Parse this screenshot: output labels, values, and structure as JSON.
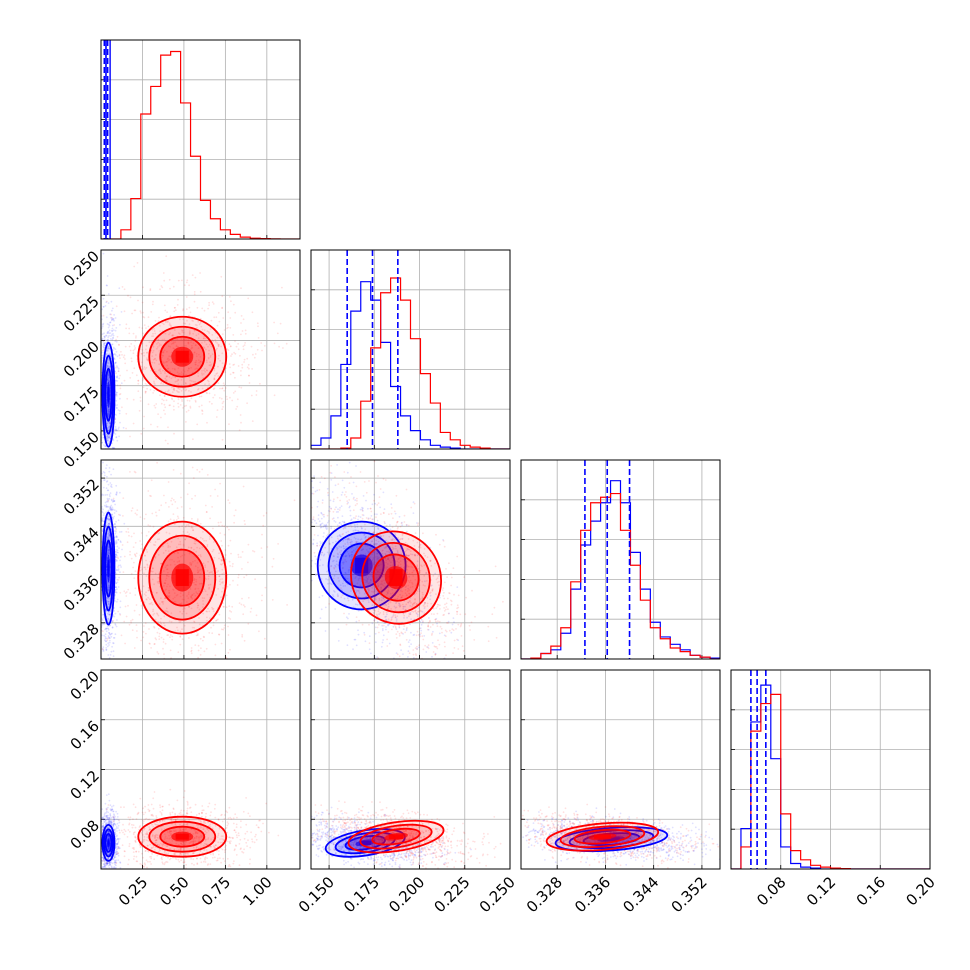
{
  "chart_data": {
    "type": "corner",
    "n_params": 4,
    "xlabels": [
      "",
      "",
      "",
      ""
    ],
    "series": [
      {
        "name": "",
        "color": "#0000ff"
      },
      {
        "name": "",
        "color": "#ff0000"
      }
    ],
    "ranges": [
      [
        0.0,
        1.2
      ],
      [
        0.14,
        0.25
      ],
      [
        0.322,
        0.355
      ],
      [
        0.04,
        0.2
      ]
    ],
    "ticks": {
      "p1": [
        "0.25",
        "0.50",
        "0.75",
        "1.00"
      ],
      "p2": [
        "0.150",
        "0.175",
        "0.200",
        "0.225",
        "0.250"
      ],
      "p3": [
        "0.328",
        "0.336",
        "0.344",
        "0.352"
      ],
      "p4": [
        "0.08",
        "0.12",
        "0.16",
        "0.20"
      ]
    },
    "quantile_lines_blue": [
      [
        0.02,
        0.03,
        0.04
      ],
      [
        0.16,
        0.174,
        0.188
      ],
      [
        0.3326,
        0.3363,
        0.34
      ],
      [
        0.056,
        0.061,
        0.068
      ]
    ],
    "hist1d": {
      "p1": {
        "red": {
          "edges": [
            0.0,
            0.06,
            0.12,
            0.18,
            0.24,
            0.3,
            0.36,
            0.42,
            0.48,
            0.54,
            0.6,
            0.66,
            0.72,
            0.78,
            0.84,
            0.9,
            0.96,
            1.02,
            1.08,
            1.14,
            1.2
          ],
          "counts": [
            0,
            0,
            0.05,
            0.22,
            0.68,
            0.83,
            1.0,
            1.02,
            0.74,
            0.45,
            0.21,
            0.11,
            0.05,
            0.025,
            0.01,
            0.004,
            0.002,
            0.001,
            0,
            0
          ]
        },
        "blue_cutoff": 0.055
      },
      "p2": {
        "edges": [
          0.14,
          0.1455,
          0.151,
          0.1565,
          0.162,
          0.1675,
          0.173,
          0.1785,
          0.184,
          0.1895,
          0.195,
          0.2005,
          0.206,
          0.2115,
          0.217,
          0.2225,
          0.228,
          0.2335,
          0.239,
          0.2445,
          0.25
        ],
        "blue": [
          0.02,
          0.06,
          0.18,
          0.46,
          0.75,
          0.91,
          0.81,
          0.58,
          0.34,
          0.18,
          0.1,
          0.05,
          0.02,
          0.01,
          0.005,
          0,
          0,
          0,
          0,
          0
        ],
        "red": [
          0,
          0,
          0,
          0.005,
          0.06,
          0.26,
          0.55,
          0.85,
          0.93,
          0.81,
          0.6,
          0.41,
          0.25,
          0.09,
          0.05,
          0.02,
          0.01,
          0.005,
          0,
          0
        ]
      },
      "p3": {
        "edges": [
          0.322,
          0.32365,
          0.3253,
          0.32695,
          0.3286,
          0.33025,
          0.3319,
          0.33355,
          0.3352,
          0.33685,
          0.3385,
          0.34015,
          0.3418,
          0.34345,
          0.3451,
          0.34675,
          0.3484,
          0.35005,
          0.3517,
          0.35335,
          0.355
        ],
        "blue": [
          0,
          0.005,
          0.03,
          0.05,
          0.14,
          0.38,
          0.62,
          0.75,
          0.85,
          0.97,
          0.85,
          0.58,
          0.38,
          0.2,
          0.12,
          0.08,
          0.05,
          0.02,
          0.01,
          0.005
        ],
        "red": [
          0,
          0.005,
          0.03,
          0.07,
          0.17,
          0.42,
          0.7,
          0.85,
          0.88,
          0.9,
          0.7,
          0.51,
          0.32,
          0.17,
          0.11,
          0.06,
          0.04,
          0.02,
          0.01,
          0
        ]
      },
      "p4": {
        "edges": [
          0.04,
          0.048,
          0.056,
          0.064,
          0.072,
          0.08,
          0.088,
          0.096,
          0.104,
          0.112,
          0.12,
          0.128,
          0.136,
          0.144,
          0.152,
          0.16,
          0.168,
          0.176,
          0.184,
          0.192,
          0.2
        ],
        "blue": [
          0,
          0.22,
          0.8,
          1.0,
          0.6,
          0.12,
          0.03,
          0.01,
          0.005,
          0,
          0,
          0,
          0,
          0,
          0,
          0,
          0,
          0,
          0,
          0
        ],
        "red": [
          0,
          0.12,
          0.75,
          0.9,
          0.95,
          0.3,
          0.1,
          0.05,
          0.02,
          0.01,
          0.005,
          0.002,
          0,
          0,
          0,
          0,
          0,
          0,
          0,
          0
        ]
      }
    },
    "hist2d_peaks": {
      "p1_p2": {
        "blue": [
          0.045,
          0.17
        ],
        "red": [
          0.49,
          0.191
        ]
      },
      "p1_p3": {
        "blue": [
          0.045,
          0.337
        ],
        "red": [
          0.49,
          0.3355
        ]
      },
      "p1_p4": {
        "blue": [
          0.045,
          0.061
        ],
        "red": [
          0.49,
          0.066
        ]
      },
      "p2_p3": {
        "blue": [
          0.168,
          0.3375
        ],
        "red": [
          0.187,
          0.3355
        ]
      },
      "p2_p4": {
        "blue": [
          0.17,
          0.061
        ],
        "red": [
          0.187,
          0.066
        ]
      },
      "p3_p4": {
        "blue": [
          0.337,
          0.064
        ],
        "red": [
          0.3355,
          0.066
        ]
      }
    }
  }
}
